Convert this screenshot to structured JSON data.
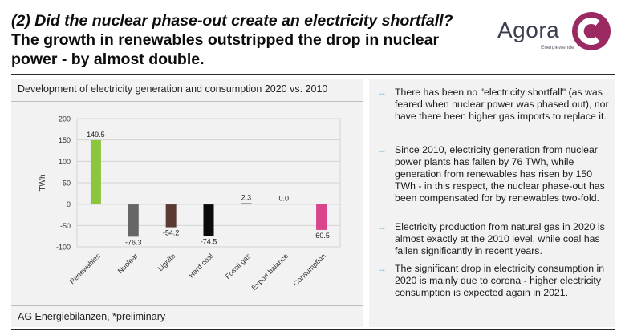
{
  "header": {
    "title_line1": "(2) Did the nuclear phase-out create an electricity shortfall?",
    "title_line2": "The growth in renewables outstripped the drop in nuclear power - by almost double."
  },
  "logo": {
    "name": "Agora",
    "tagline": "Energiewende",
    "accent_color": "#9b2a63"
  },
  "panel": {
    "heading": "Development of electricity generation and consumption 2020 vs. 2010",
    "source": "AG Energiebilanzen, *preliminary"
  },
  "chart_data": {
    "type": "bar",
    "categories": [
      "Renewables",
      "Nuclear",
      "Lignite",
      "Hard coal",
      "Fossil gas",
      "Export balance",
      "Consumption"
    ],
    "values": [
      149.5,
      -76.3,
      -54.2,
      -74.5,
      2.3,
      0.0,
      -60.5
    ],
    "data_labels": [
      "149.5",
      "-76.3",
      "-54.2",
      "-74.5",
      "2.3",
      "0.0",
      "-60.5"
    ],
    "colors": [
      "#8cc63f",
      "#666666",
      "#5c3a34",
      "#0a0a0a",
      "#666666",
      "#666666",
      "#d9448a"
    ],
    "ylabel": "TWh",
    "yticks": [
      "200",
      "150",
      "100",
      "50",
      "0",
      "-50",
      "-100"
    ],
    "ylim": [
      -100,
      200
    ],
    "grid": true
  },
  "bullets": [
    {
      "icon": "arrow-icon",
      "text": "There has been no \"electricity shortfall\" (as was feared when nuclear power was phased out), nor have there been higher gas imports to replace it."
    },
    {
      "icon": "arrow-icon",
      "text": "Since 2010, electricity generation from nuclear power plants has fallen by 76 TWh, while generation from renewables has risen by 150 TWh - in this respect, the nuclear phase-out has been compensated for by renewables two-fold."
    },
    {
      "icon": "arrow-icon",
      "text": "Electricity production from natural gas in 2020 is almost exactly at the 2010 level, while coal has fallen significantly in recent years."
    },
    {
      "icon": "arrow-icon",
      "text": "The significant drop in electricity consumption in 2020 is mainly due to corona - higher electricity consumption is expected again in 2021."
    }
  ]
}
